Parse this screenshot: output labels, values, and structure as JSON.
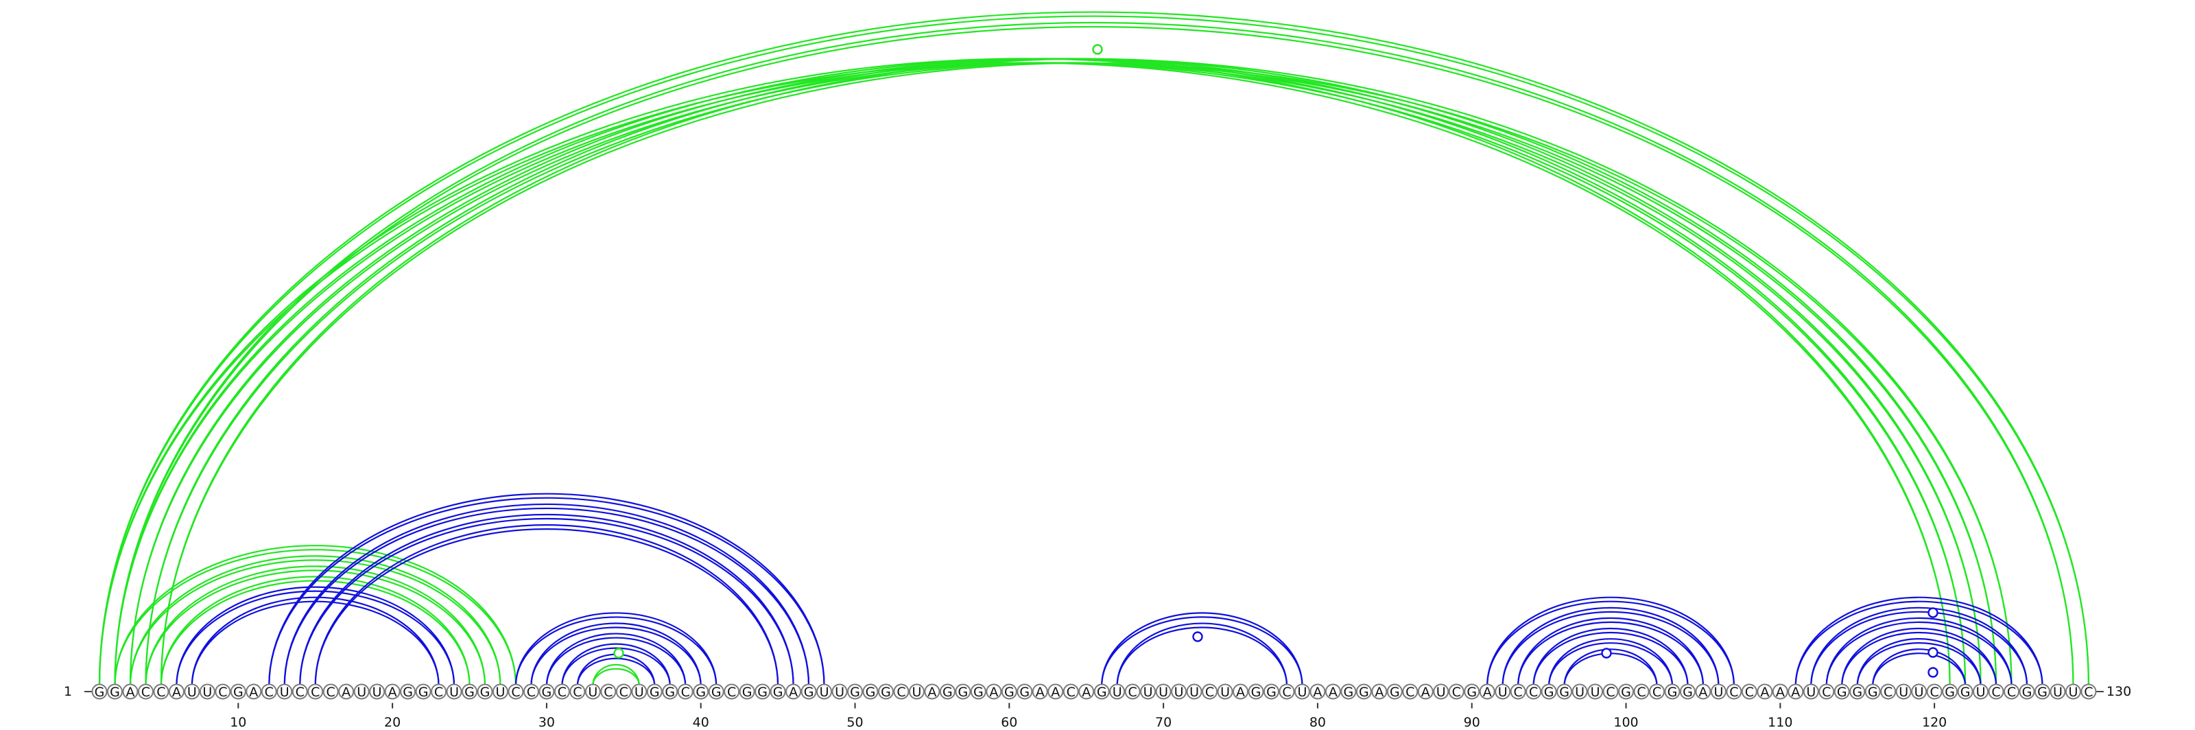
{
  "sequence": "GGACCAUUCGACUCCCAUUAGGCUGGUCCGCCUCCUGGCGGCGGGAGUUGGGCUAGGGAGGAACAGUCUUUUCUAGGCUAAGGAGCAUCGAUCCGGUUCGCCGGAUCCAAAUCGGGCUUCGGUCCGGUUC",
  "labels": {
    "start": "1",
    "end": "130",
    "ticks": [
      10,
      20,
      30,
      40,
      50,
      60,
      70,
      80,
      90,
      100,
      110,
      120
    ]
  },
  "colors": {
    "green": "#22e622",
    "blue": "#1010dd"
  },
  "helices": [
    {
      "color": "green",
      "pairs": [
        [
          1,
          121
        ],
        [
          2,
          122
        ],
        [
          3,
          123
        ],
        [
          4,
          124
        ],
        [
          5,
          125
        ]
      ]
    },
    {
      "color": "green",
      "pairs": [
        [
          1,
          130
        ],
        [
          2,
          129
        ]
      ]
    },
    {
      "color": "green",
      "pairs": [
        [
          2,
          28
        ],
        [
          3,
          27
        ],
        [
          4,
          26
        ],
        [
          5,
          25
        ]
      ]
    },
    {
      "color": "blue",
      "pairs": [
        [
          6,
          24
        ],
        [
          7,
          23
        ]
      ]
    },
    {
      "color": "blue",
      "pairs": [
        [
          12,
          48
        ],
        [
          13,
          47
        ],
        [
          14,
          46
        ],
        [
          15,
          45
        ]
      ]
    },
    {
      "color": "blue",
      "pairs": [
        [
          28,
          41
        ],
        [
          29,
          40
        ],
        [
          30,
          39
        ],
        [
          31,
          38
        ],
        [
          32,
          37
        ]
      ]
    },
    {
      "color": "green",
      "pairs": [
        [
          33,
          36
        ]
      ]
    },
    {
      "color": "blue",
      "pairs": [
        [
          66,
          79
        ],
        [
          67,
          78
        ]
      ]
    },
    {
      "color": "blue",
      "pairs": [
        [
          91,
          107
        ],
        [
          92,
          106
        ],
        [
          93,
          105
        ],
        [
          94,
          104
        ],
        [
          95,
          103
        ],
        [
          96,
          102
        ]
      ]
    },
    {
      "color": "blue",
      "pairs": [
        [
          111,
          127
        ],
        [
          112,
          126
        ],
        [
          113,
          125
        ],
        [
          114,
          124
        ],
        [
          115,
          123
        ],
        [
          116,
          122
        ]
      ]
    }
  ],
  "pins": [
    {
      "base": 35,
      "color": "green",
      "filled": true
    },
    {
      "base": 66,
      "color": "green",
      "filled": false
    },
    {
      "base": 72,
      "color": "blue",
      "filled": false
    },
    {
      "base": 99,
      "color": "blue",
      "filled": false
    },
    {
      "base": 119,
      "color": "blue",
      "filled": false
    },
    {
      "base": 119,
      "color": "blue",
      "filled": false
    },
    {
      "base": 119,
      "color": "blue",
      "filled": false
    }
  ]
}
